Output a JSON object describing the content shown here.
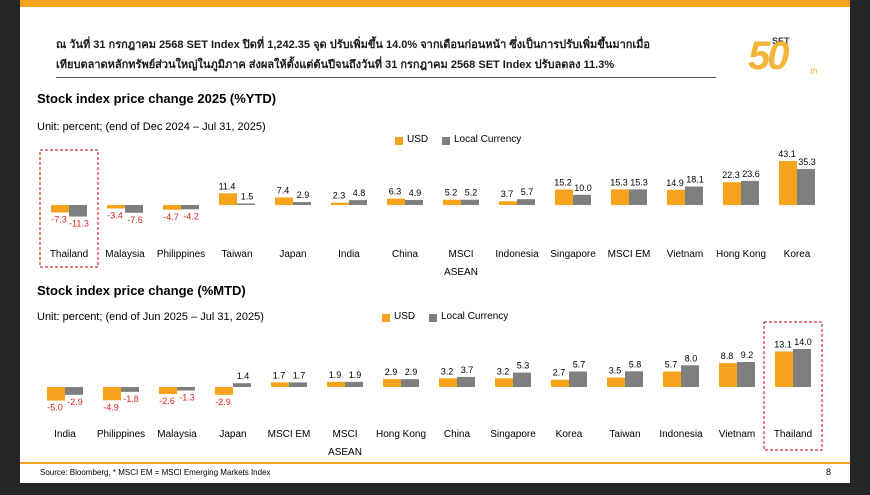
{
  "header": {
    "line1": "ณ วันที่ 31 กรกฎาคม 2568 SET Index ปิดที่ 1,242.35 จุด ปรับเพิ่มขึ้น 14.0% จากเดือนก่อนหน้า ซึ่งเป็นการปรับเพิ่มขึ้นมากเมื่อ",
    "line2": "เทียบตลาดหลักทรัพย์ส่วนใหญ่ในภูมิภาค ส่งผลให้ตั้งแต่ต้นปีจนถึงวันที่ 31 กรกฎาคม 2568 SET Index ปรับลดลง 11.3%"
  },
  "logo": {
    "brand": "SET",
    "number": "50",
    "suffix": "th"
  },
  "chart_data": [
    {
      "type": "bar",
      "title": "Stock index price change 2025 (%YTD)",
      "subtitle": "Unit: percent;  (end of Dec 2024 – Jul 31, 2025)",
      "categories": [
        "Thailand",
        "Malaysia",
        "Philippines",
        "Taiwan",
        "Japan",
        "India",
        "China",
        "MSCI ASEAN",
        "Indonesia",
        "Singapore",
        "MSCI EM",
        "Vietnam",
        "Hong Kong",
        "Korea"
      ],
      "series": [
        {
          "name": "USD",
          "color": "#f5a31c",
          "values": [
            -7.3,
            -3.4,
            -4.7,
            11.4,
            7.4,
            2.3,
            6.3,
            5.2,
            3.7,
            15.2,
            15.3,
            14.9,
            22.3,
            43.1
          ],
          "value_labels": [
            "-7.3",
            "-3.4",
            "-4.7",
            "11.4",
            "7.4",
            "2.3",
            "6.3",
            "5.2",
            "3.7",
            "15.2",
            "15.3",
            "14.9",
            "22.3",
            "43.1"
          ]
        },
        {
          "name": "Local Currency",
          "color": "#7f7f7f",
          "values": [
            -11.3,
            -7.6,
            -4.2,
            1.5,
            2.9,
            4.8,
            4.9,
            5.2,
            5.7,
            10.0,
            15.3,
            18.1,
            23.6,
            35.3
          ],
          "value_labels": [
            "-11.3",
            "-7.6",
            "-4.2",
            "1.5",
            "2.9",
            "4.8",
            "4.9",
            "5.2",
            "5.7",
            "10.0",
            "15.3",
            "18.1",
            "23.6",
            "35.3"
          ]
        }
      ],
      "negative_label_color": "#e02020",
      "highlight": "Thailand"
    },
    {
      "type": "bar",
      "title": "Stock index price change (%MTD)",
      "subtitle": "Unit: percent;  (end of Jun 2025 – Jul 31, 2025)",
      "categories": [
        "India",
        "Philippines",
        "Malaysia",
        "Japan",
        "MSCI EM",
        "MSCI ASEAN",
        "Hong Kong",
        "China",
        "Singapore",
        "Korea",
        "Taiwan",
        "Indonesia",
        "Vietnam",
        "Thailand"
      ],
      "series": [
        {
          "name": "USD",
          "color": "#f5a31c",
          "values": [
            -5.0,
            -4.9,
            -2.6,
            -2.9,
            1.7,
            1.9,
            2.9,
            3.2,
            3.2,
            2.7,
            3.5,
            5.7,
            8.8,
            13.1
          ],
          "value_labels": [
            "-5.0",
            "-4.9",
            "-2.6",
            "-2.9",
            "1.7",
            "1.9",
            "2.9",
            "3.2",
            "3.2",
            "2.7",
            "3.5",
            "5.7",
            "8.8",
            "13.1"
          ]
        },
        {
          "name": "Local Currency",
          "color": "#7f7f7f",
          "values": [
            -2.9,
            -1.8,
            -1.3,
            1.4,
            1.7,
            1.9,
            2.9,
            3.7,
            5.3,
            5.7,
            5.8,
            8.0,
            9.2,
            14.0
          ],
          "value_labels": [
            "-2.9",
            "-1.8",
            "-1.3",
            "1.4",
            "1.7",
            "1.9",
            "2.9",
            "3.7",
            "5.3",
            "5.7",
            "5.8",
            "8.0",
            "9.2",
            "14.0"
          ]
        }
      ],
      "negative_label_color": "#e02020",
      "highlight": "Thailand"
    }
  ],
  "footer": {
    "source": "Source: Bloomberg, * MSCI EM = MSCI Emerging Markets Index",
    "page": "8"
  }
}
